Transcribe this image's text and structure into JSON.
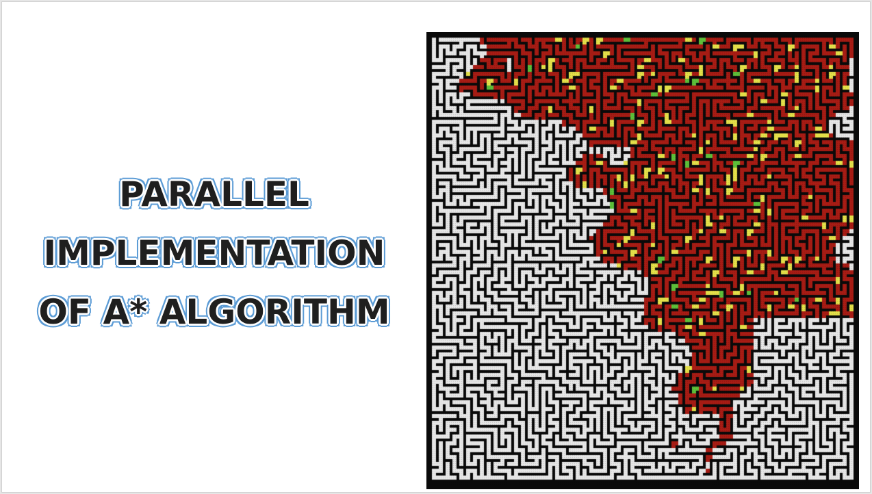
{
  "slide": {
    "title_lines": [
      "PARALLEL",
      "IMPLEMENTATION",
      "OF A* ALGORITHM"
    ]
  },
  "maze_image": {
    "colors": {
      "wall": "#0a0a0a",
      "path": "#e8e8e8",
      "explored": "#a81c14",
      "frontier_yellow": "#e6e24a",
      "frontier_green": "#5ec23a"
    }
  }
}
